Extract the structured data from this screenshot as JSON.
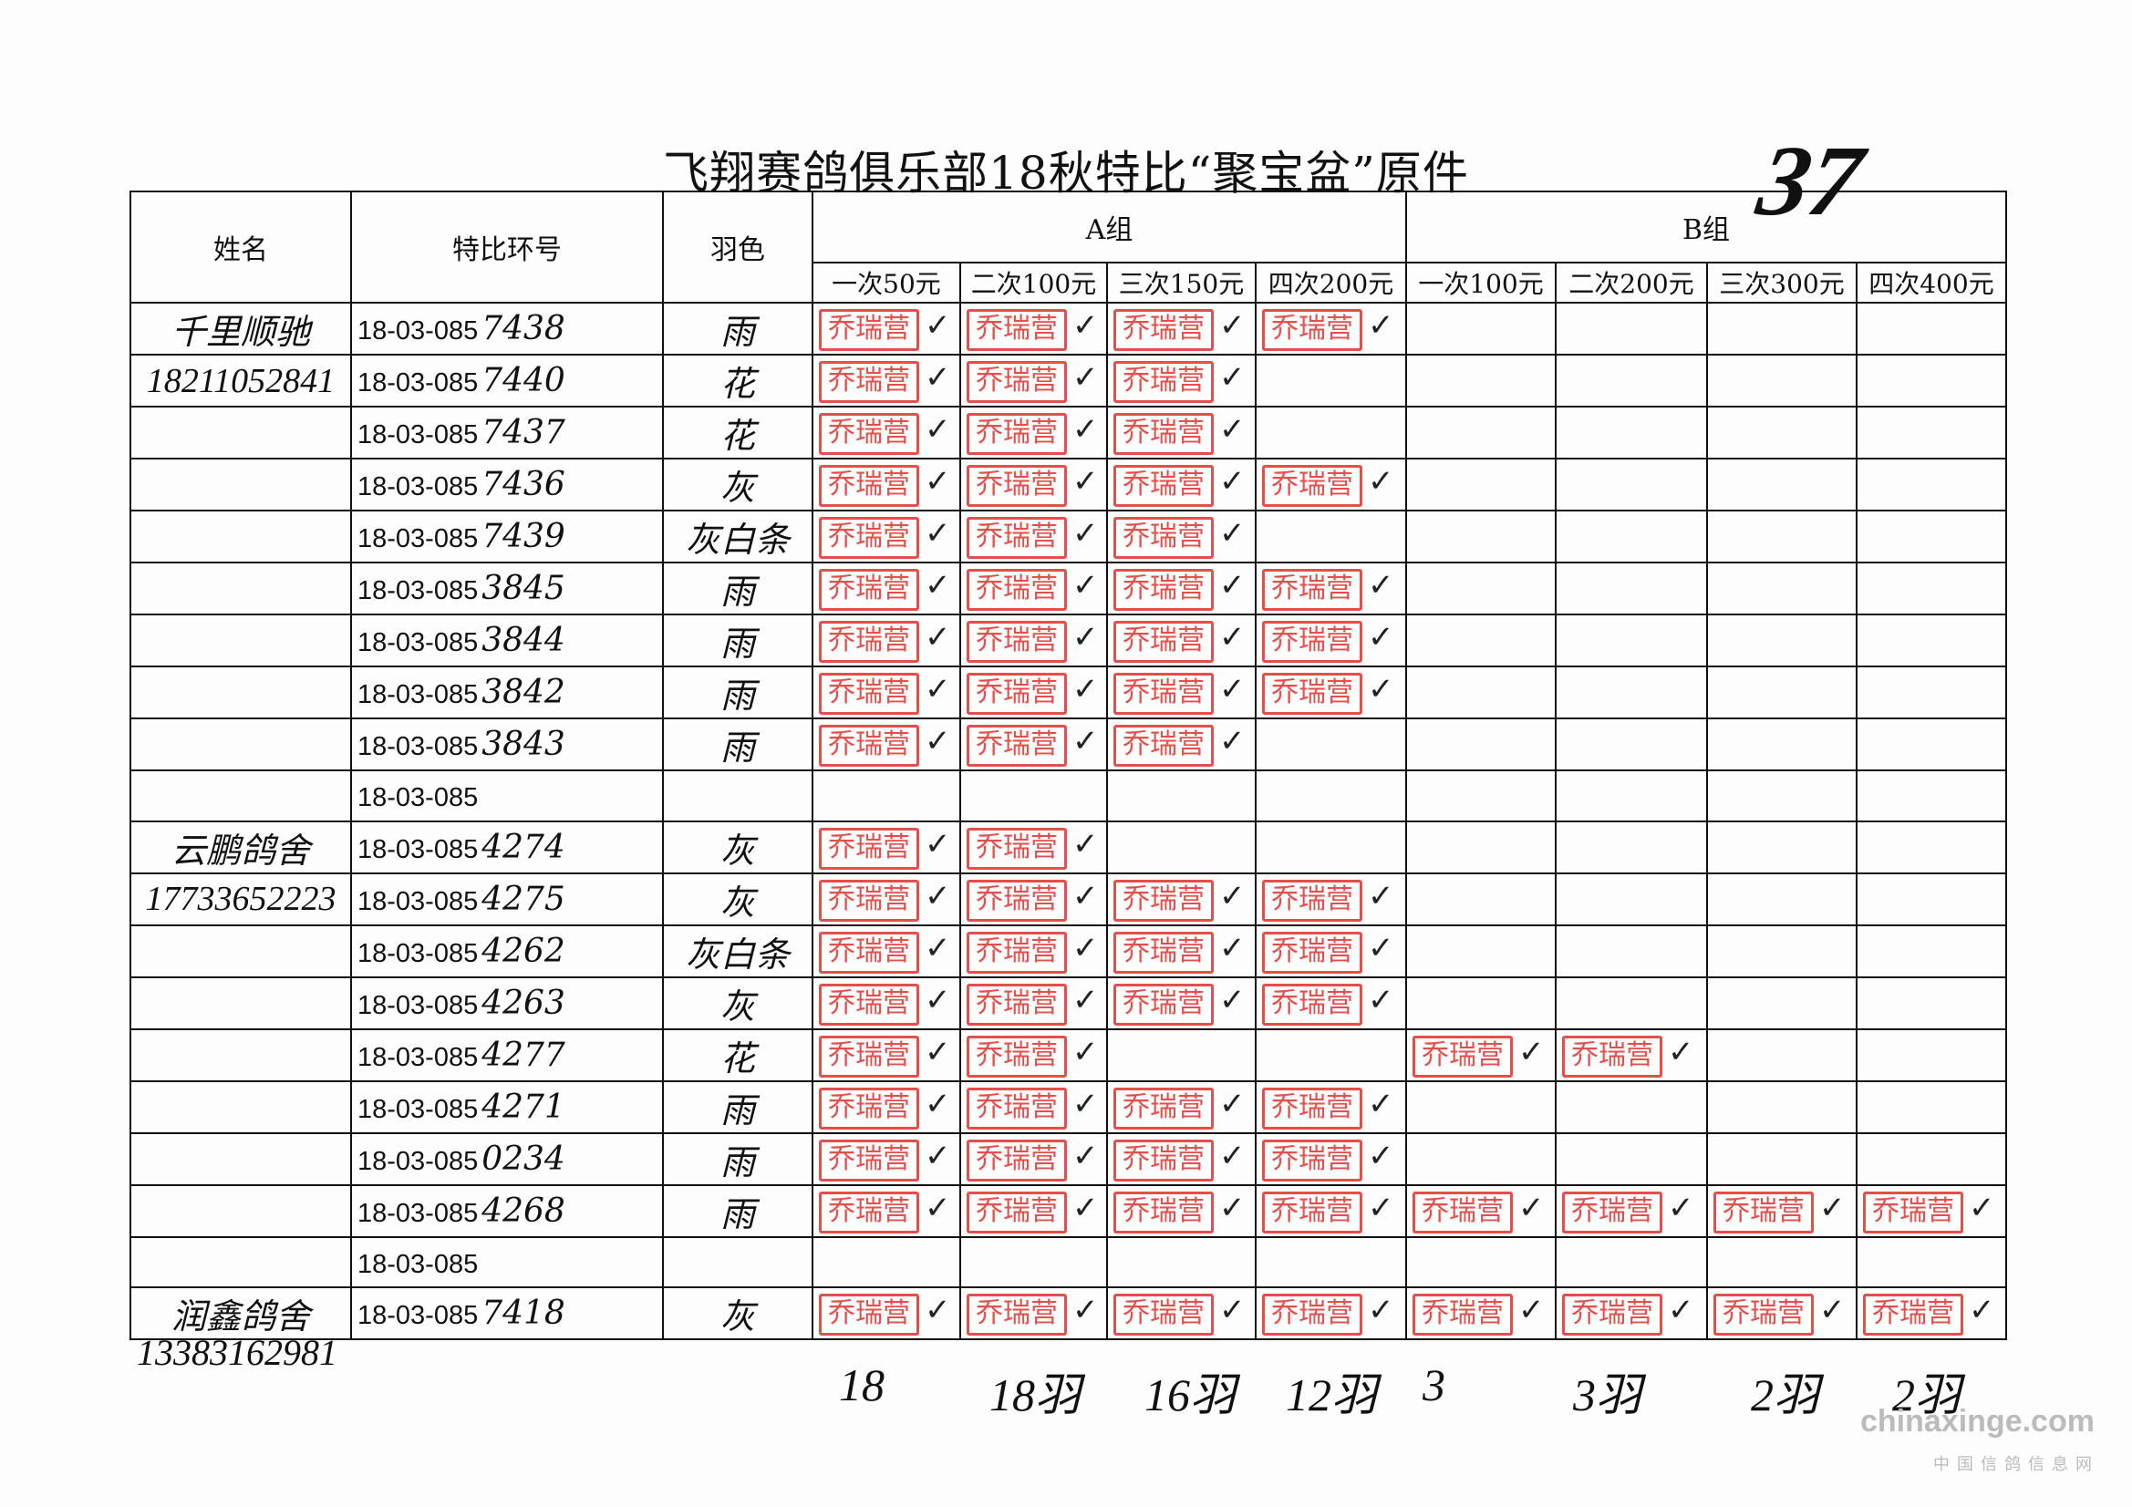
{
  "title": "飞翔赛鸽俱乐部18秋特比“聚宝盆”原件",
  "sheet_number": "37",
  "headers": {
    "name": "姓名",
    "ring": "特比环号",
    "color": "羽色",
    "group_a": "A组",
    "group_b": "B组",
    "cols": [
      "一次50元",
      "二次100元",
      "三次150元",
      "四次200元",
      "一次100元",
      "二次200元",
      "三次300元",
      "四次400元"
    ]
  },
  "stamp_text": "乔瑞营",
  "stamp_color": "#e0302c",
  "rows": [
    {
      "name": "千里顺驰",
      "ring": "18-03-085",
      "suffix": "7438",
      "color": "雨",
      "stamps": [
        1,
        1,
        1,
        1,
        0,
        0,
        0,
        0
      ]
    },
    {
      "name": "18211052841",
      "ring": "18-03-085",
      "suffix": "7440",
      "color": "花",
      "stamps": [
        1,
        1,
        1,
        0,
        0,
        0,
        0,
        0
      ]
    },
    {
      "name": "",
      "ring": "18-03-085",
      "suffix": "7437",
      "color": "花",
      "stamps": [
        1,
        1,
        1,
        0,
        0,
        0,
        0,
        0
      ]
    },
    {
      "name": "",
      "ring": "18-03-085",
      "suffix": "7436",
      "color": "灰",
      "stamps": [
        1,
        1,
        1,
        1,
        0,
        0,
        0,
        0
      ]
    },
    {
      "name": "",
      "ring": "18-03-085",
      "suffix": "7439",
      "color": "灰白条",
      "stamps": [
        1,
        1,
        1,
        0,
        0,
        0,
        0,
        0
      ]
    },
    {
      "name": "",
      "ring": "18-03-085",
      "suffix": "3845",
      "color": "雨",
      "stamps": [
        1,
        1,
        1,
        1,
        0,
        0,
        0,
        0
      ]
    },
    {
      "name": "",
      "ring": "18-03-085",
      "suffix": "3844",
      "color": "雨",
      "stamps": [
        1,
        1,
        1,
        1,
        0,
        0,
        0,
        0
      ]
    },
    {
      "name": "",
      "ring": "18-03-085",
      "suffix": "3842",
      "color": "雨",
      "stamps": [
        1,
        1,
        1,
        1,
        0,
        0,
        0,
        0
      ]
    },
    {
      "name": "",
      "ring": "18-03-085",
      "suffix": "3843",
      "color": "雨",
      "stamps": [
        1,
        1,
        1,
        0,
        0,
        0,
        0,
        0
      ]
    },
    {
      "name": "",
      "ring": "18-03-085",
      "suffix": "",
      "color": "",
      "stamps": [
        0,
        0,
        0,
        0,
        0,
        0,
        0,
        0
      ]
    },
    {
      "name": "云鹏鸽舍",
      "ring": "18-03-085",
      "suffix": "4274",
      "color": "灰",
      "stamps": [
        1,
        1,
        0,
        0,
        0,
        0,
        0,
        0
      ]
    },
    {
      "name": "17733652223",
      "ring": "18-03-085",
      "suffix": "4275",
      "color": "灰",
      "stamps": [
        1,
        1,
        1,
        1,
        0,
        0,
        0,
        0
      ]
    },
    {
      "name": "",
      "ring": "18-03-085",
      "suffix": "4262",
      "color": "灰白条",
      "stamps": [
        1,
        1,
        1,
        1,
        0,
        0,
        0,
        0
      ]
    },
    {
      "name": "",
      "ring": "18-03-085",
      "suffix": "4263",
      "color": "灰",
      "stamps": [
        1,
        1,
        1,
        1,
        0,
        0,
        0,
        0
      ]
    },
    {
      "name": "",
      "ring": "18-03-085",
      "suffix": "4277",
      "color": "花",
      "stamps": [
        1,
        1,
        0,
        0,
        1,
        1,
        0,
        0
      ]
    },
    {
      "name": "",
      "ring": "18-03-085",
      "suffix": "4271",
      "color": "雨",
      "stamps": [
        1,
        1,
        1,
        1,
        0,
        0,
        0,
        0
      ]
    },
    {
      "name": "",
      "ring": "18-03-085",
      "suffix": "0234",
      "color": "雨",
      "stamps": [
        1,
        1,
        1,
        1,
        0,
        0,
        0,
        0
      ]
    },
    {
      "name": "",
      "ring": "18-03-085",
      "suffix": "4268",
      "color": "雨",
      "stamps": [
        1,
        1,
        1,
        1,
        1,
        1,
        1,
        1
      ]
    },
    {
      "name": "",
      "ring": "18-03-085",
      "suffix": "",
      "color": "",
      "stamps": [
        0,
        0,
        0,
        0,
        0,
        0,
        0,
        0
      ]
    },
    {
      "name": "润鑫鸽舍",
      "ring": "18-03-085",
      "suffix": "7418",
      "color": "灰",
      "stamps": [
        1,
        1,
        1,
        1,
        1,
        1,
        1,
        1
      ]
    }
  ],
  "phone_below": "13383162981",
  "totals": [
    "18",
    "18羽",
    "16羽",
    "12羽",
    "3",
    "3羽",
    "2羽",
    "2羽"
  ],
  "watermark": {
    "site": "chinaxinge.com",
    "name": "中国信鸽信息网"
  }
}
